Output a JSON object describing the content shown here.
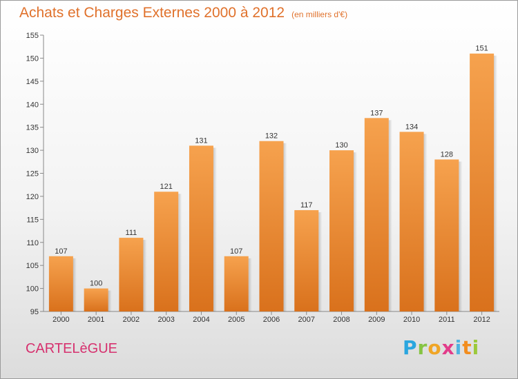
{
  "header": {
    "title": "Achats et Charges Externes 2000 à 2012",
    "unit": "(en milliers d'€)"
  },
  "footer": {
    "commune": "CARTELèGUE",
    "logo_text": "Proxiti"
  },
  "colors": {
    "bar_top": "#f6a24e",
    "bar_bottom": "#d9711c",
    "title": "#e0712b",
    "commune": "#d6306e"
  },
  "chart_data": {
    "type": "bar",
    "title": "Achats et Charges Externes 2000 à 2012",
    "subtitle": "(en milliers d'€)",
    "xlabel": "",
    "ylabel": "",
    "categories": [
      "2000",
      "2001",
      "2002",
      "2003",
      "2004",
      "2005",
      "2006",
      "2007",
      "2008",
      "2009",
      "2010",
      "2011",
      "2012"
    ],
    "values": [
      107,
      100,
      111,
      121,
      131,
      107,
      132,
      117,
      130,
      137,
      134,
      128,
      151
    ],
    "ylim": [
      95,
      155
    ],
    "yticks": [
      95,
      100,
      105,
      110,
      115,
      120,
      125,
      130,
      135,
      140,
      145,
      150,
      155
    ],
    "grid": false,
    "legend": "none"
  }
}
